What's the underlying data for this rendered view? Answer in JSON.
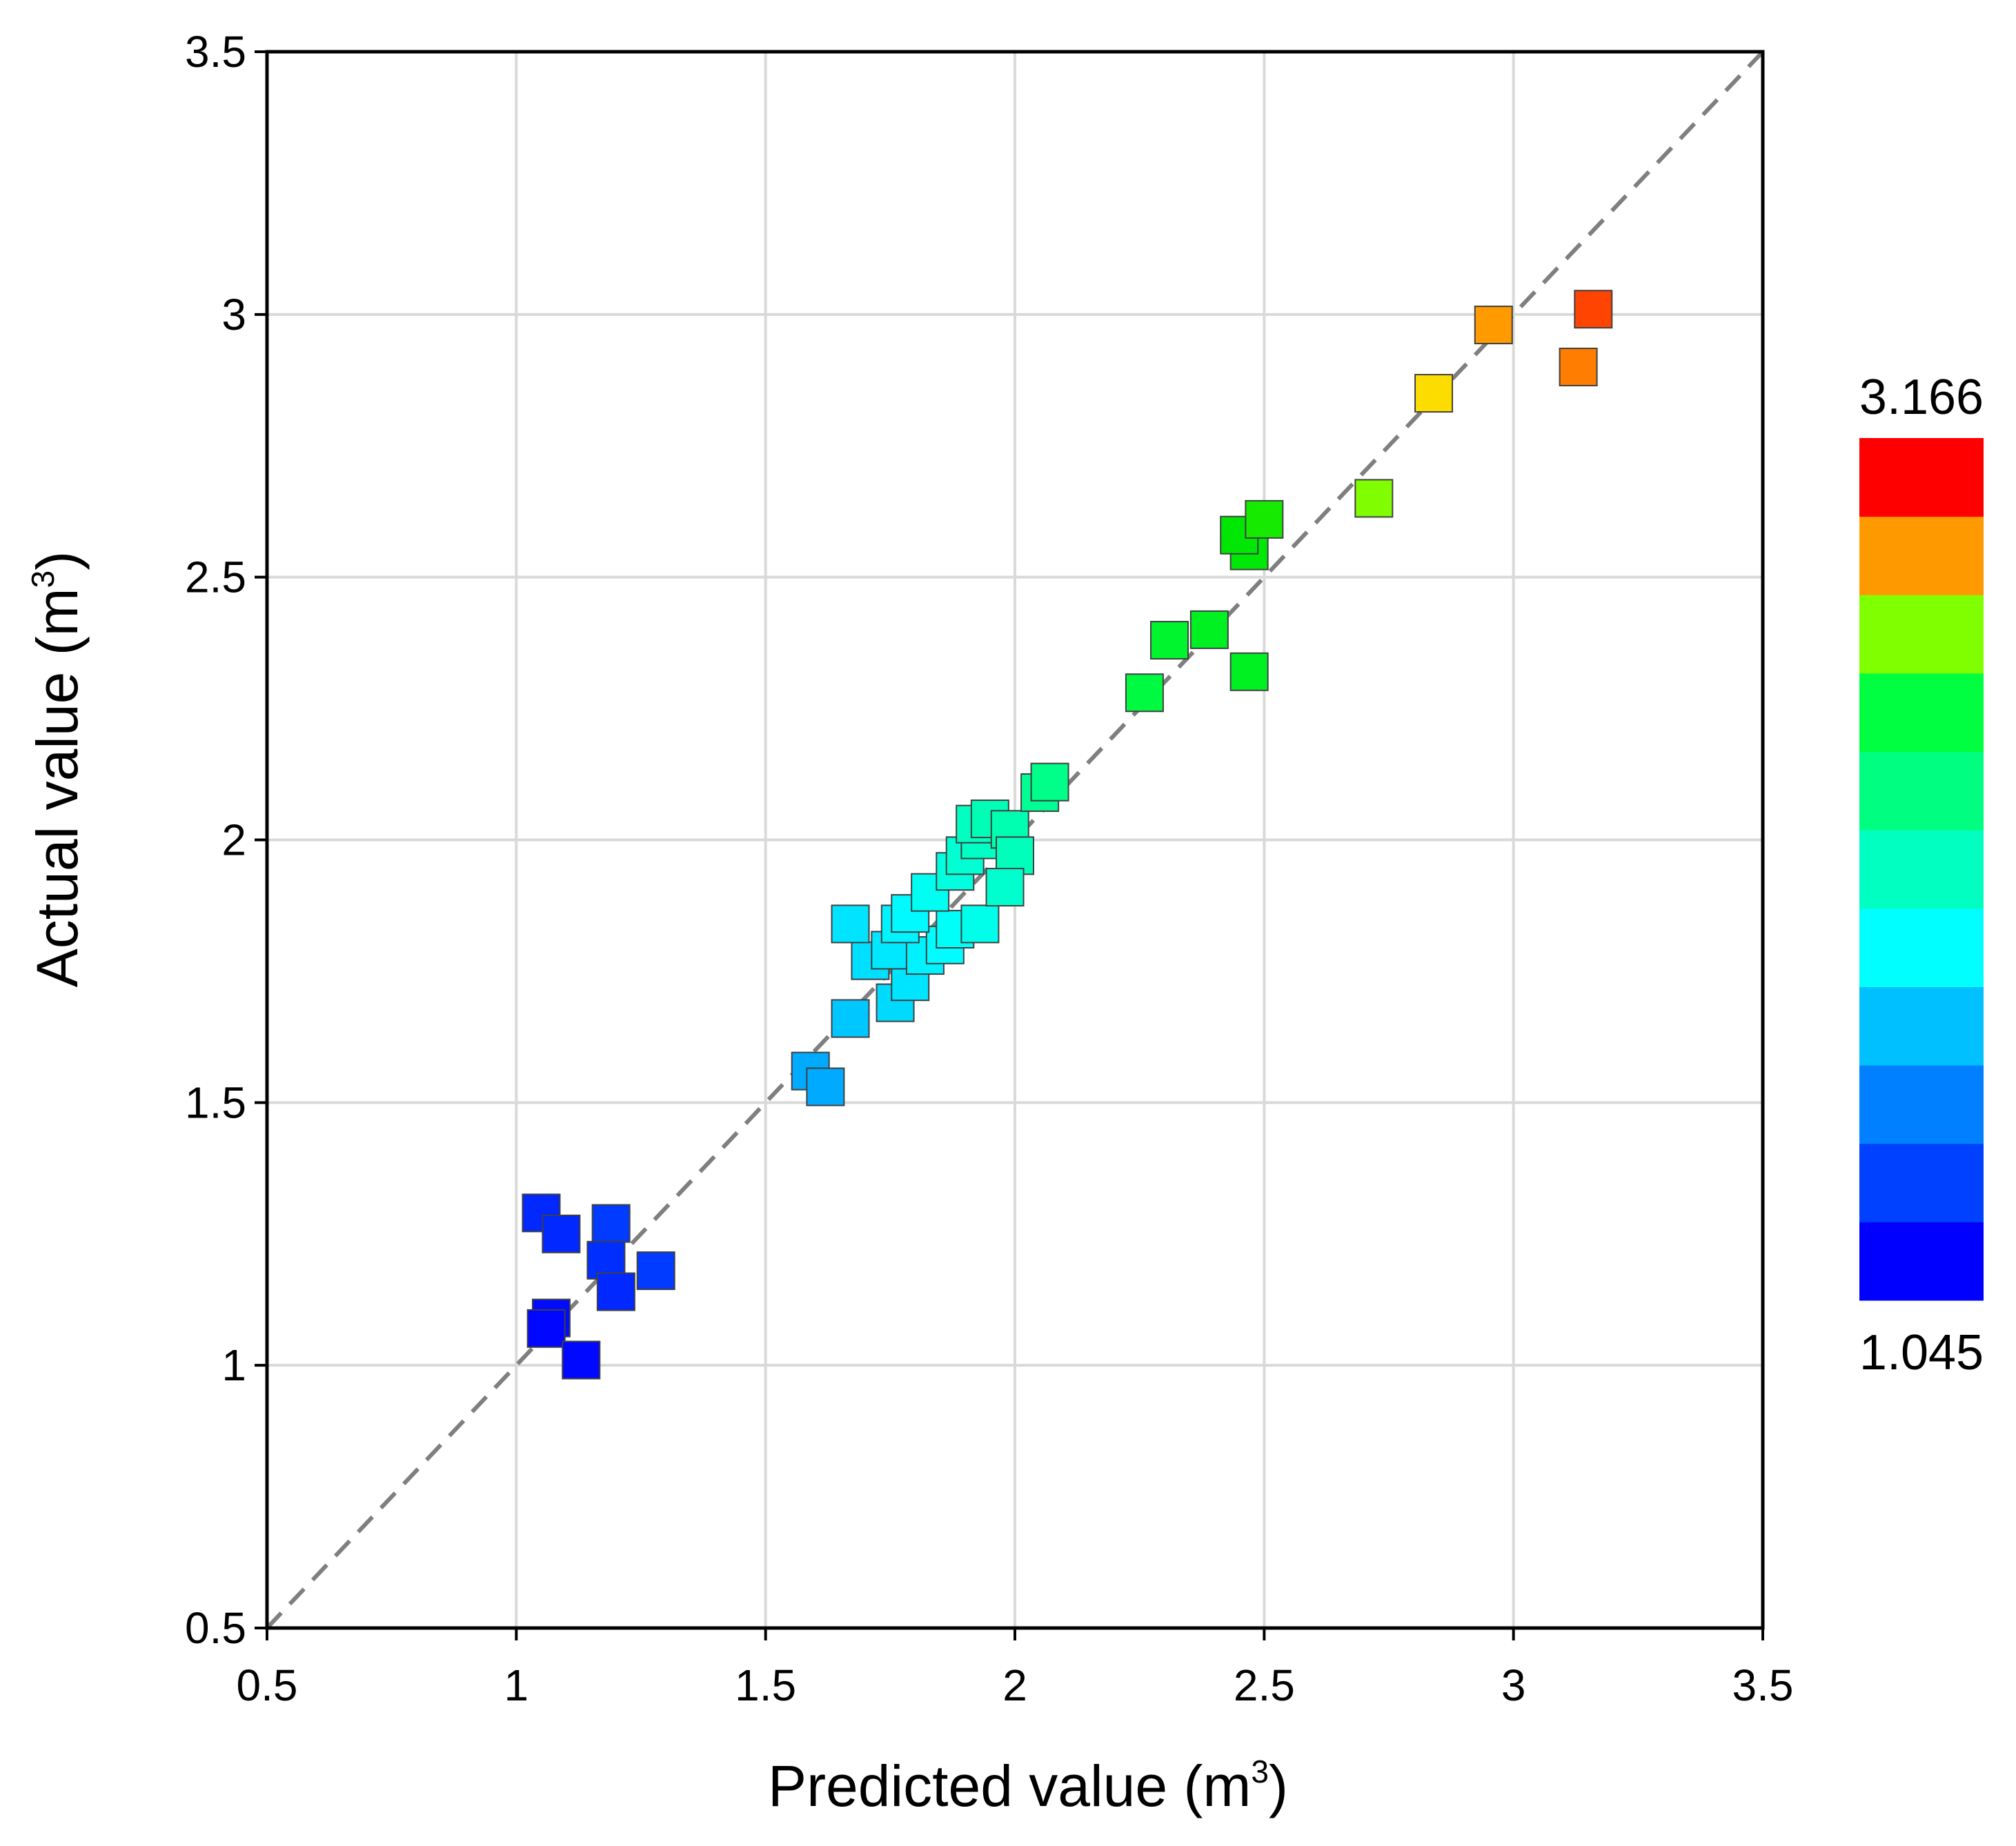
{
  "chart_data": {
    "type": "scatter",
    "title": "",
    "xlabel": "Predicted value (m",
    "xlabel_sup": "3",
    "xlabel_end": ")",
    "ylabel": "Actual value (m",
    "ylabel_sup": "3",
    "ylabel_end": ")",
    "xlim": [
      0.5,
      3.5
    ],
    "ylim": [
      0.5,
      3.5
    ],
    "xticks": [
      0.5,
      1,
      1.5,
      2,
      2.5,
      3,
      3.5
    ],
    "xtick_labels": [
      "0.5",
      "1",
      "1.5",
      "2",
      "2.5",
      "3",
      "3.5"
    ],
    "yticks": [
      0.5,
      1,
      1.5,
      2,
      2.5,
      3,
      3.5
    ],
    "ytick_labels": [
      "0.5",
      "1",
      "1.5",
      "2",
      "2.5",
      "3",
      "3.5"
    ],
    "grid": true,
    "reference_line": "y = x (dashed)",
    "colorbar": {
      "max_label": "3.166",
      "min_label": "1.045",
      "min": 1.045,
      "max": 3.166,
      "colors": [
        "#0000ff",
        "#0040ff",
        "#0080ff",
        "#00c0ff",
        "#00ffff",
        "#00ffc0",
        "#00ff80",
        "#00ff40",
        "#80ff00",
        "#ff9900",
        "#ff0000"
      ]
    },
    "marker": "square",
    "points": [
      {
        "x": 1.05,
        "y": 1.29
      },
      {
        "x": 1.09,
        "y": 1.25
      },
      {
        "x": 1.19,
        "y": 1.27
      },
      {
        "x": 1.18,
        "y": 1.2
      },
      {
        "x": 1.2,
        "y": 1.14
      },
      {
        "x": 1.28,
        "y": 1.18
      },
      {
        "x": 1.07,
        "y": 1.09
      },
      {
        "x": 1.06,
        "y": 1.07
      },
      {
        "x": 1.13,
        "y": 1.01
      },
      {
        "x": 1.59,
        "y": 1.56
      },
      {
        "x": 1.62,
        "y": 1.53
      },
      {
        "x": 1.67,
        "y": 1.66
      },
      {
        "x": 1.76,
        "y": 1.69
      },
      {
        "x": 1.79,
        "y": 1.73
      },
      {
        "x": 1.71,
        "y": 1.77
      },
      {
        "x": 1.75,
        "y": 1.79
      },
      {
        "x": 1.82,
        "y": 1.78
      },
      {
        "x": 1.86,
        "y": 1.8
      },
      {
        "x": 1.88,
        "y": 1.83
      },
      {
        "x": 1.93,
        "y": 1.84
      },
      {
        "x": 1.67,
        "y": 1.84
      },
      {
        "x": 1.77,
        "y": 1.84
      },
      {
        "x": 1.79,
        "y": 1.86
      },
      {
        "x": 1.83,
        "y": 1.9
      },
      {
        "x": 1.88,
        "y": 1.94
      },
      {
        "x": 1.9,
        "y": 1.97
      },
      {
        "x": 1.93,
        "y": 2.0
      },
      {
        "x": 1.92,
        "y": 2.03
      },
      {
        "x": 1.95,
        "y": 2.04
      },
      {
        "x": 1.99,
        "y": 2.02
      },
      {
        "x": 2.0,
        "y": 1.97
      },
      {
        "x": 1.98,
        "y": 1.91
      },
      {
        "x": 2.05,
        "y": 2.09
      },
      {
        "x": 2.07,
        "y": 2.11
      },
      {
        "x": 2.26,
        "y": 2.28
      },
      {
        "x": 2.31,
        "y": 2.38
      },
      {
        "x": 2.39,
        "y": 2.4
      },
      {
        "x": 2.47,
        "y": 2.32
      },
      {
        "x": 2.47,
        "y": 2.55
      },
      {
        "x": 2.45,
        "y": 2.58
      },
      {
        "x": 2.5,
        "y": 2.61
      },
      {
        "x": 2.72,
        "y": 2.65
      },
      {
        "x": 2.84,
        "y": 2.85
      },
      {
        "x": 2.96,
        "y": 2.98
      },
      {
        "x": 3.13,
        "y": 2.9
      },
      {
        "x": 3.16,
        "y": 3.01
      }
    ]
  }
}
